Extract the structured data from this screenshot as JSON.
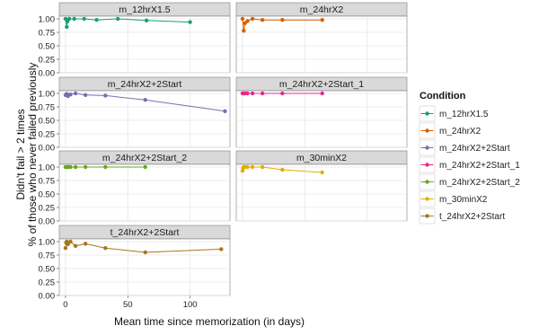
{
  "chart_data": {
    "type": "line",
    "facet_layout": "3 columns × 4 rows",
    "xlabel": "Mean time since memorization (in days)",
    "ylabel_lines": [
      "Didn't fail > 2 times",
      "% of those who never failed previously"
    ],
    "y_ticks": [
      "0.00",
      "0.25",
      "0.50",
      "0.75",
      "1.00"
    ],
    "x_ticks": [
      "0",
      "50",
      "100"
    ],
    "ylim": [
      0,
      1.05
    ],
    "xlim": [
      -5,
      132
    ],
    "legend": {
      "title": "Condition",
      "position": "right"
    },
    "series": [
      {
        "name": "m_12hrX1.5",
        "color": "#1b9e77",
        "x": [
          0,
          1,
          1.5,
          3,
          7,
          15,
          25,
          42,
          65,
          100
        ],
        "y": [
          1.0,
          0.85,
          0.95,
          1.0,
          1.0,
          1.0,
          0.98,
          1.0,
          0.97,
          0.94
        ]
      },
      {
        "name": "m_24hrX2",
        "color": "#d95f02",
        "x": [
          0,
          1,
          2,
          4,
          8,
          16,
          32,
          64
        ],
        "y": [
          1.0,
          0.78,
          0.92,
          0.96,
          1.0,
          0.98,
          0.98,
          0.98
        ]
      },
      {
        "name": "m_24hrX2+2Start",
        "color": "#7570b3",
        "x": [
          0,
          1,
          2,
          4,
          8,
          16,
          32,
          64,
          128
        ],
        "y": [
          0.97,
          0.99,
          0.95,
          0.98,
          1.0,
          0.97,
          0.96,
          0.88,
          0.67
        ]
      },
      {
        "name": "m_24hrX2+2Start_1",
        "color": "#e7298a",
        "x": [
          0,
          1,
          2,
          4,
          8,
          16,
          32,
          64
        ],
        "y": [
          1.0,
          1.0,
          1.0,
          1.0,
          1.0,
          1.0,
          1.0,
          1.0
        ]
      },
      {
        "name": "m_24hrX2+2Start_2",
        "color": "#66a61e",
        "x": [
          0,
          1,
          2,
          4,
          8,
          16,
          32,
          64
        ],
        "y": [
          1.0,
          1.0,
          1.0,
          1.0,
          1.0,
          1.0,
          1.0,
          1.0
        ]
      },
      {
        "name": "m_30minX2",
        "color": "#e6ab02",
        "x": [
          0,
          0.5,
          1,
          2,
          4,
          8,
          16,
          32,
          64
        ],
        "y": [
          0.93,
          0.98,
          1.0,
          1.0,
          1.0,
          1.0,
          1.0,
          0.95,
          0.9
        ]
      },
      {
        "name": "t_24hrX2+2Start",
        "color": "#a6761d",
        "x": [
          0,
          0.5,
          1,
          2,
          4,
          8,
          16,
          32,
          64,
          125
        ],
        "y": [
          0.88,
          0.98,
          1.0,
          0.95,
          1.0,
          0.92,
          0.96,
          0.88,
          0.8,
          0.86
        ]
      }
    ]
  }
}
